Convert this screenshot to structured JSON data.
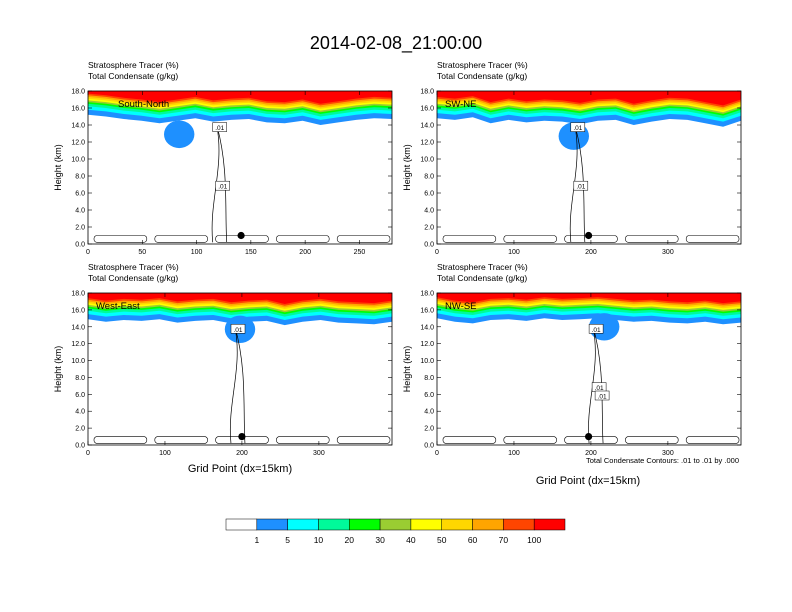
{
  "figure": {
    "title": "2014-02-08_21:00:00",
    "xlabel": "Grid Point (dx=15km)",
    "ylabel": "Height (km)",
    "contour_note": "Total Condensate Contours: .01 to .01 by .000"
  },
  "colors": {
    "white": "#ffffff",
    "blue": "#1e90ff",
    "cyan": "#00ffff",
    "spring": "#00fa9a",
    "green": "#00ff00",
    "lime": "#9acd32",
    "yellow": "#ffff00",
    "gold": "#ffd700",
    "orange": "#ffa500",
    "orangered": "#ff4500",
    "red": "#ff0000"
  },
  "colorbar": {
    "colors": [
      "#ffffff",
      "#1e90ff",
      "#00ffff",
      "#00fa9a",
      "#00ff00",
      "#9acd32",
      "#ffff00",
      "#ffd700",
      "#ffa500",
      "#ff4500",
      "#ff0000"
    ],
    "labels": [
      "1",
      "5",
      "10",
      "20",
      "30",
      "40",
      "50",
      "60",
      "70",
      "100"
    ]
  },
  "chart_data": [
    {
      "type": "heatmap",
      "name": "South-North",
      "label_left": "Stratosphere Tracer   (%)",
      "label_left2": "Total Condensate   (g/kg)",
      "x_ticks": [
        "0",
        "50",
        "100",
        "150",
        "200",
        "250"
      ],
      "xlim": [
        0,
        280
      ],
      "y_ticks": [
        "0.0",
        "2.0",
        "4.0",
        "6.0",
        "8.0",
        "10.0",
        "12.0",
        "14.0",
        "16.0",
        "18.0"
      ],
      "ylim": [
        0,
        18
      ],
      "tropopause_km": [
        15.2,
        15.0,
        14.7,
        14.5,
        14.2,
        14.5,
        14.8,
        14.4,
        14.6,
        14.7,
        14.3,
        14.2,
        14.5,
        14.0,
        14.3,
        14.6,
        14.8,
        14.7
      ],
      "contour_labels": [
        ".01",
        ".01"
      ],
      "marker": {
        "x": 141,
        "y": 1.0
      }
    },
    {
      "type": "heatmap",
      "name": "SW-NE",
      "label_left": "Stratosphere Tracer   (%)",
      "label_left2": "Total Condensate   (g/kg)",
      "x_ticks": [
        "0",
        "100",
        "200",
        "300"
      ],
      "xlim": [
        0,
        395
      ],
      "y_ticks": [
        "0.0",
        "2.0",
        "4.0",
        "6.0",
        "8.0",
        "10.0",
        "12.0",
        "14.0",
        "16.0",
        "18.0"
      ],
      "ylim": [
        0,
        18
      ],
      "tropopause_km": [
        14.8,
        14.6,
        14.9,
        14.2,
        14.6,
        14.3,
        14.5,
        14.4,
        14.1,
        14.5,
        14.6,
        14.0,
        14.4,
        14.7,
        14.6,
        14.2,
        13.8,
        14.5
      ],
      "contour_labels": [
        ".01",
        ".01"
      ],
      "marker": {
        "x": 197,
        "y": 1.0
      }
    },
    {
      "type": "heatmap",
      "name": "West-East",
      "label_left": "Stratosphere Tracer   (%)",
      "label_left2": "Total Condensate   (g/kg)",
      "x_ticks": [
        "0",
        "100",
        "200",
        "300"
      ],
      "xlim": [
        0,
        395
      ],
      "y_ticks": [
        "0.0",
        "2.0",
        "4.0",
        "6.0",
        "8.0",
        "10.0",
        "12.0",
        "14.0",
        "16.0",
        "18.0"
      ],
      "ylim": [
        0,
        18
      ],
      "tropopause_km": [
        14.9,
        14.6,
        14.8,
        14.7,
        14.9,
        14.5,
        14.7,
        14.8,
        14.4,
        14.6,
        14.7,
        14.2,
        14.6,
        14.8,
        14.5,
        14.4,
        14.3,
        14.6
      ],
      "contour_labels": [
        ".01"
      ],
      "marker": {
        "x": 200,
        "y": 1.0
      }
    },
    {
      "type": "heatmap",
      "name": "NW-SE",
      "label_left": "Stratosphere Tracer   (%)",
      "label_left2": "Total Condensate   (g/kg)",
      "x_ticks": [
        "0",
        "100",
        "200",
        "300"
      ],
      "xlim": [
        0,
        395
      ],
      "y_ticks": [
        "0.0",
        "2.0",
        "4.0",
        "6.0",
        "8.0",
        "10.0",
        "12.0",
        "14.0",
        "16.0",
        "18.0"
      ],
      "ylim": [
        0,
        18
      ],
      "tropopause_km": [
        15.0,
        14.6,
        14.4,
        14.8,
        14.9,
        14.7,
        15.0,
        14.8,
        14.9,
        15.0,
        14.8,
        14.6,
        14.7,
        14.5,
        14.4,
        14.6,
        14.3,
        14.5
      ],
      "contour_labels": [
        ".01",
        ".01",
        ".01"
      ],
      "marker": {
        "x": 197,
        "y": 1.0
      }
    }
  ]
}
